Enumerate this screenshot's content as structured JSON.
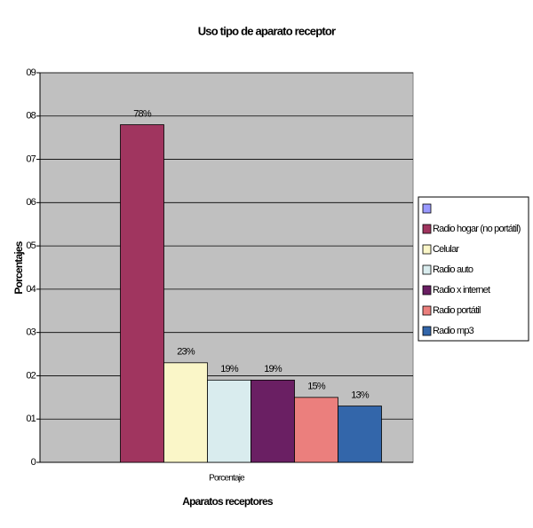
{
  "chart_data": {
    "type": "bar",
    "title": "Uso tipo de aparato receptor",
    "x_label": "Aparatos receptores",
    "y_label": "Porcentajes",
    "categories": [
      "Porcentaje"
    ],
    "series": [
      {
        "name": null,
        "color": "#9999ff",
        "values": [
          null
        ]
      },
      {
        "name": "Radio hogar (no portátil)",
        "color": "#a0355f",
        "values": [
          0.78
        ],
        "value_labels": [
          "78%"
        ]
      },
      {
        "name": "Celular",
        "color": "#faf6c8",
        "values": [
          0.23
        ],
        "value_labels": [
          "23%"
        ]
      },
      {
        "name": "Radio auto",
        "color": "#d9ecee",
        "values": [
          0.19
        ],
        "value_labels": [
          "19%"
        ]
      },
      {
        "name": "Radio x internet",
        "color": "#6a1f63",
        "values": [
          0.19
        ],
        "value_labels": [
          "19%"
        ]
      },
      {
        "name": "Radio portátil",
        "color": "#eb7f7d",
        "values": [
          0.15
        ],
        "value_labels": [
          "15%"
        ]
      },
      {
        "name": "Radio mp3",
        "color": "#3366aa",
        "values": [
          0.13
        ],
        "value_labels": [
          "13%"
        ]
      }
    ],
    "ylim": [
      0,
      0.9
    ],
    "yticks": [
      0,
      {
        "value": 0.1,
        "label": "01"
      },
      {
        "value": 0.2,
        "label": "02"
      },
      {
        "value": 0.3,
        "label": "03"
      },
      {
        "value": 0.4,
        "label": "04"
      },
      {
        "value": 0.5,
        "label": "05"
      },
      {
        "value": 0.6,
        "label": "06"
      },
      {
        "value": 0.7,
        "label": "07"
      },
      {
        "value": 0.8,
        "label": "08"
      },
      {
        "value": 0.9,
        "label": "09"
      }
    ],
    "grid": true,
    "legend": "right"
  }
}
